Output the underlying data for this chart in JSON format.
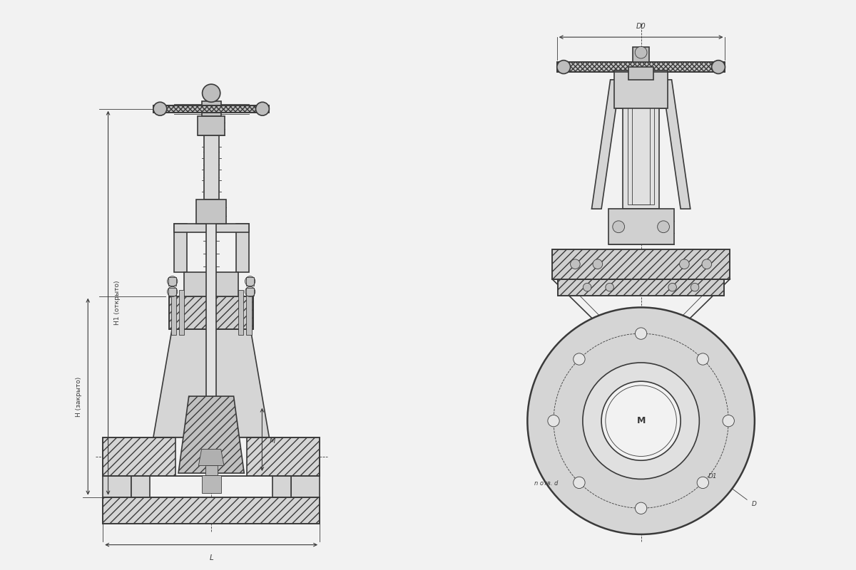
{
  "bg_color": "#f2f2f2",
  "line_color": "#3a3a3a",
  "dim_color": "#3a3a3a",
  "labels": {
    "H_closed": "H (закрыто)",
    "H1_open": "H1 (открыто)",
    "L": "L",
    "D0": "D0",
    "D": "D",
    "D1": "D1",
    "n_bolts": "n отв. d",
    "M": "M"
  }
}
